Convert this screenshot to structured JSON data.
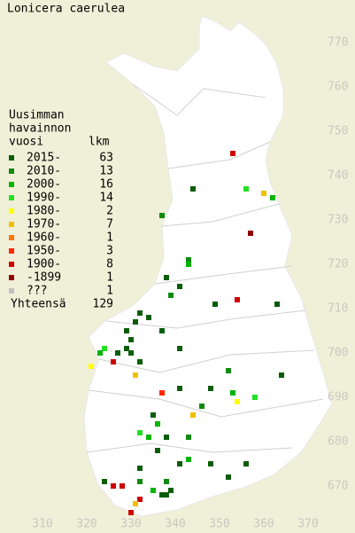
{
  "title": "Lonicera caerulea",
  "legend": {
    "heading": [
      "Uusimman",
      "havainnon",
      "vuosi"
    ],
    "count_heading": "lkm",
    "entries": [
      {
        "label": "2015-",
        "count": 63,
        "color": "#0a5e0a"
      },
      {
        "label": "2010-",
        "count": 13,
        "color": "#108a10"
      },
      {
        "label": "2000-",
        "count": 16,
        "color": "#00b400"
      },
      {
        "label": "1990-",
        "count": 14,
        "color": "#20e020"
      },
      {
        "label": "1980-",
        "count": 2,
        "color": "#ffff00"
      },
      {
        "label": "1970-",
        "count": 7,
        "color": "#f0c000"
      },
      {
        "label": "1960-",
        "count": 1,
        "color": "#ff7800"
      },
      {
        "label": "1950-",
        "count": 3,
        "color": "#ff2800"
      },
      {
        "label": "1900-",
        "count": 8,
        "color": "#d00000"
      },
      {
        "label": "-1899",
        "count": 1,
        "color": "#900000"
      },
      {
        "label": "???",
        "count": 1,
        "color": "#c0c0c0"
      }
    ],
    "total_label": "Yhteensä",
    "total": 129
  },
  "x_axis": [
    310,
    320,
    330,
    340,
    350,
    360,
    370
  ],
  "y_axis": [
    670,
    680,
    690,
    700,
    710,
    720,
    730,
    740,
    750,
    760,
    770
  ],
  "records": [
    {
      "x": 353,
      "y": 745,
      "period": 8
    },
    {
      "x": 344,
      "y": 737,
      "period": 0
    },
    {
      "x": 356,
      "y": 737,
      "period": 3
    },
    {
      "x": 360,
      "y": 736,
      "period": 5
    },
    {
      "x": 362,
      "y": 735,
      "period": 2
    },
    {
      "x": 337,
      "y": 731,
      "period": 1
    },
    {
      "x": 357,
      "y": 727,
      "period": 9
    },
    {
      "x": 343,
      "y": 721,
      "period": 1
    },
    {
      "x": 343,
      "y": 720,
      "period": 2
    },
    {
      "x": 338,
      "y": 717,
      "period": 0
    },
    {
      "x": 341,
      "y": 715,
      "period": 0
    },
    {
      "x": 339,
      "y": 713,
      "period": 1
    },
    {
      "x": 354,
      "y": 712,
      "period": 8
    },
    {
      "x": 349,
      "y": 711,
      "period": 0
    },
    {
      "x": 363,
      "y": 711,
      "period": 0
    },
    {
      "x": 332,
      "y": 709,
      "period": 0
    },
    {
      "x": 334,
      "y": 708,
      "period": 0
    },
    {
      "x": 331,
      "y": 707,
      "period": 0
    },
    {
      "x": 329,
      "y": 705,
      "period": 0
    },
    {
      "x": 337,
      "y": 705,
      "period": 0
    },
    {
      "x": 330,
      "y": 703,
      "period": 0
    },
    {
      "x": 329,
      "y": 701,
      "period": 0
    },
    {
      "x": 324,
      "y": 701,
      "period": 3
    },
    {
      "x": 323,
      "y": 700,
      "period": 2
    },
    {
      "x": 327,
      "y": 700,
      "period": 0
    },
    {
      "x": 326,
      "y": 698,
      "period": 8
    },
    {
      "x": 321,
      "y": 697,
      "period": 4
    },
    {
      "x": 330,
      "y": 700,
      "period": 0
    },
    {
      "x": 332,
      "y": 698,
      "period": 0
    },
    {
      "x": 331,
      "y": 695,
      "period": 5
    },
    {
      "x": 341,
      "y": 701,
      "period": 0
    },
    {
      "x": 352,
      "y": 696,
      "period": 1
    },
    {
      "x": 364,
      "y": 695,
      "period": 0
    },
    {
      "x": 337,
      "y": 691,
      "period": 7
    },
    {
      "x": 341,
      "y": 692,
      "period": 0
    },
    {
      "x": 348,
      "y": 692,
      "period": 0
    },
    {
      "x": 353,
      "y": 691,
      "period": 2
    },
    {
      "x": 354,
      "y": 689,
      "period": 4
    },
    {
      "x": 358,
      "y": 690,
      "period": 3
    },
    {
      "x": 346,
      "y": 688,
      "period": 1
    },
    {
      "x": 344,
      "y": 686,
      "period": 5
    },
    {
      "x": 335,
      "y": 686,
      "period": 0
    },
    {
      "x": 336,
      "y": 684,
      "period": 2
    },
    {
      "x": 332,
      "y": 682,
      "period": 3
    },
    {
      "x": 334,
      "y": 681,
      "period": 2
    },
    {
      "x": 338,
      "y": 681,
      "period": 0
    },
    {
      "x": 343,
      "y": 681,
      "period": 1
    },
    {
      "x": 336,
      "y": 678,
      "period": 0
    },
    {
      "x": 341,
      "y": 675,
      "period": 0
    },
    {
      "x": 343,
      "y": 676,
      "period": 2
    },
    {
      "x": 348,
      "y": 675,
      "period": 0
    },
    {
      "x": 352,
      "y": 672,
      "period": 0
    },
    {
      "x": 356,
      "y": 675,
      "period": 0
    },
    {
      "x": 332,
      "y": 674,
      "period": 0
    },
    {
      "x": 324,
      "y": 671,
      "period": 0
    },
    {
      "x": 326,
      "y": 670,
      "period": 8
    },
    {
      "x": 328,
      "y": 670,
      "period": 8
    },
    {
      "x": 332,
      "y": 671,
      "period": 1
    },
    {
      "x": 338,
      "y": 671,
      "period": 1
    },
    {
      "x": 337,
      "y": 668,
      "period": 0
    },
    {
      "x": 338,
      "y": 668,
      "period": 0
    },
    {
      "x": 339,
      "y": 669,
      "period": 0
    },
    {
      "x": 332,
      "y": 667,
      "period": 8
    },
    {
      "x": 330,
      "y": 664,
      "period": 8
    },
    {
      "x": 331,
      "y": 666,
      "period": 5
    },
    {
      "x": 335,
      "y": 669,
      "period": 2
    }
  ]
}
